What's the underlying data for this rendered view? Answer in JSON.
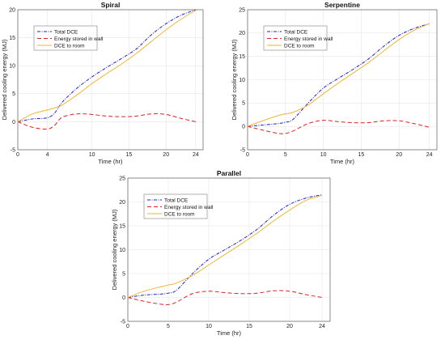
{
  "colors": {
    "total_dce": "#1f1fd0",
    "energy_wall": "#e02020",
    "dce_room": "#f2b632",
    "grid": "#e6e6e6",
    "axis": "#444444"
  },
  "chart_data": [
    {
      "type": "line",
      "title": "Spiral",
      "xlabel": "Time (hr)",
      "ylabel": "Delivered cooling energy (MJ)",
      "xlim": [
        0,
        25
      ],
      "ylim": [
        -5,
        20
      ],
      "xticks": [
        0,
        4,
        10,
        15,
        20,
        24
      ],
      "yticks": [
        -5,
        0,
        5,
        10,
        15,
        20
      ],
      "grid": true,
      "legend": "top-left",
      "x": [
        0,
        2,
        4,
        5,
        6,
        8,
        10,
        12,
        14,
        16,
        18,
        20,
        22,
        24
      ],
      "series": [
        {
          "name": "Total DCE",
          "values": [
            0,
            0.5,
            0.7,
            1.6,
            3.5,
            6.0,
            8.0,
            9.7,
            11.3,
            13.0,
            15.5,
            17.5,
            19.0,
            20.0
          ]
        },
        {
          "name": "Energy stored in wall",
          "values": [
            0,
            -1.0,
            -1.3,
            -0.6,
            0.8,
            1.4,
            1.3,
            1.0,
            0.9,
            1.0,
            1.4,
            1.3,
            0.6,
            0
          ]
        },
        {
          "name": "DCE to room",
          "values": [
            0,
            1.4,
            2.1,
            2.5,
            3.0,
            4.8,
            6.8,
            8.6,
            10.3,
            12.2,
            14.3,
            16.4,
            18.3,
            19.9
          ]
        }
      ]
    },
    {
      "type": "line",
      "title": "Serpentine",
      "xlabel": "Time (hr)",
      "ylabel": "Delivered cooling energy (MJ)",
      "xlim": [
        0,
        25
      ],
      "ylim": [
        -5,
        25
      ],
      "xticks": [
        0,
        5,
        10,
        15,
        20,
        24
      ],
      "yticks": [
        -5,
        0,
        5,
        10,
        15,
        20,
        25
      ],
      "grid": true,
      "legend": "top-left",
      "x": [
        0,
        2,
        4,
        5,
        6,
        8,
        10,
        12,
        14,
        16,
        18,
        20,
        22,
        24
      ],
      "series": [
        {
          "name": "Total DCE",
          "values": [
            0,
            0.3,
            0.6,
            0.9,
            1.5,
            5.0,
            8.2,
            10.3,
            12.3,
            14.5,
            17.2,
            19.5,
            21.0,
            22.0
          ]
        },
        {
          "name": "Energy stored in wall",
          "values": [
            0,
            -0.8,
            -1.5,
            -1.5,
            -1.0,
            0.6,
            1.3,
            1.0,
            0.8,
            0.8,
            1.2,
            1.2,
            0.6,
            -0.2
          ]
        },
        {
          "name": "DCE to room",
          "values": [
            0,
            1.2,
            2.3,
            2.7,
            3.0,
            4.6,
            7.0,
            9.3,
            11.5,
            13.7,
            16.2,
            18.6,
            20.6,
            22.0
          ]
        }
      ]
    },
    {
      "type": "line",
      "title": "Parallel",
      "xlabel": "Time (hr)",
      "ylabel": "Delivered cooling energy (MJ)",
      "xlim": [
        0,
        25
      ],
      "ylim": [
        -5,
        25
      ],
      "xticks": [
        0,
        5,
        10,
        15,
        20,
        24
      ],
      "yticks": [
        -5,
        0,
        5,
        10,
        15,
        20,
        25
      ],
      "grid": true,
      "legend": "top-left",
      "x": [
        0,
        2,
        4,
        5,
        6,
        8,
        10,
        12,
        14,
        16,
        18,
        20,
        22,
        24
      ],
      "series": [
        {
          "name": "Total DCE",
          "values": [
            0,
            0.5,
            0.7,
            0.9,
            1.5,
            5.0,
            8.0,
            10.0,
            12.0,
            14.3,
            17.2,
            19.5,
            20.8,
            21.5
          ]
        },
        {
          "name": "Energy stored in wall",
          "values": [
            0,
            -0.8,
            -1.4,
            -1.5,
            -1.0,
            0.8,
            1.3,
            1.0,
            0.8,
            0.9,
            1.4,
            1.3,
            0.6,
            0
          ]
        },
        {
          "name": "DCE to room",
          "values": [
            0,
            1.3,
            2.2,
            2.6,
            3.0,
            4.6,
            6.8,
            9.0,
            11.2,
            13.5,
            16.0,
            18.3,
            20.3,
            21.4
          ]
        }
      ]
    }
  ]
}
